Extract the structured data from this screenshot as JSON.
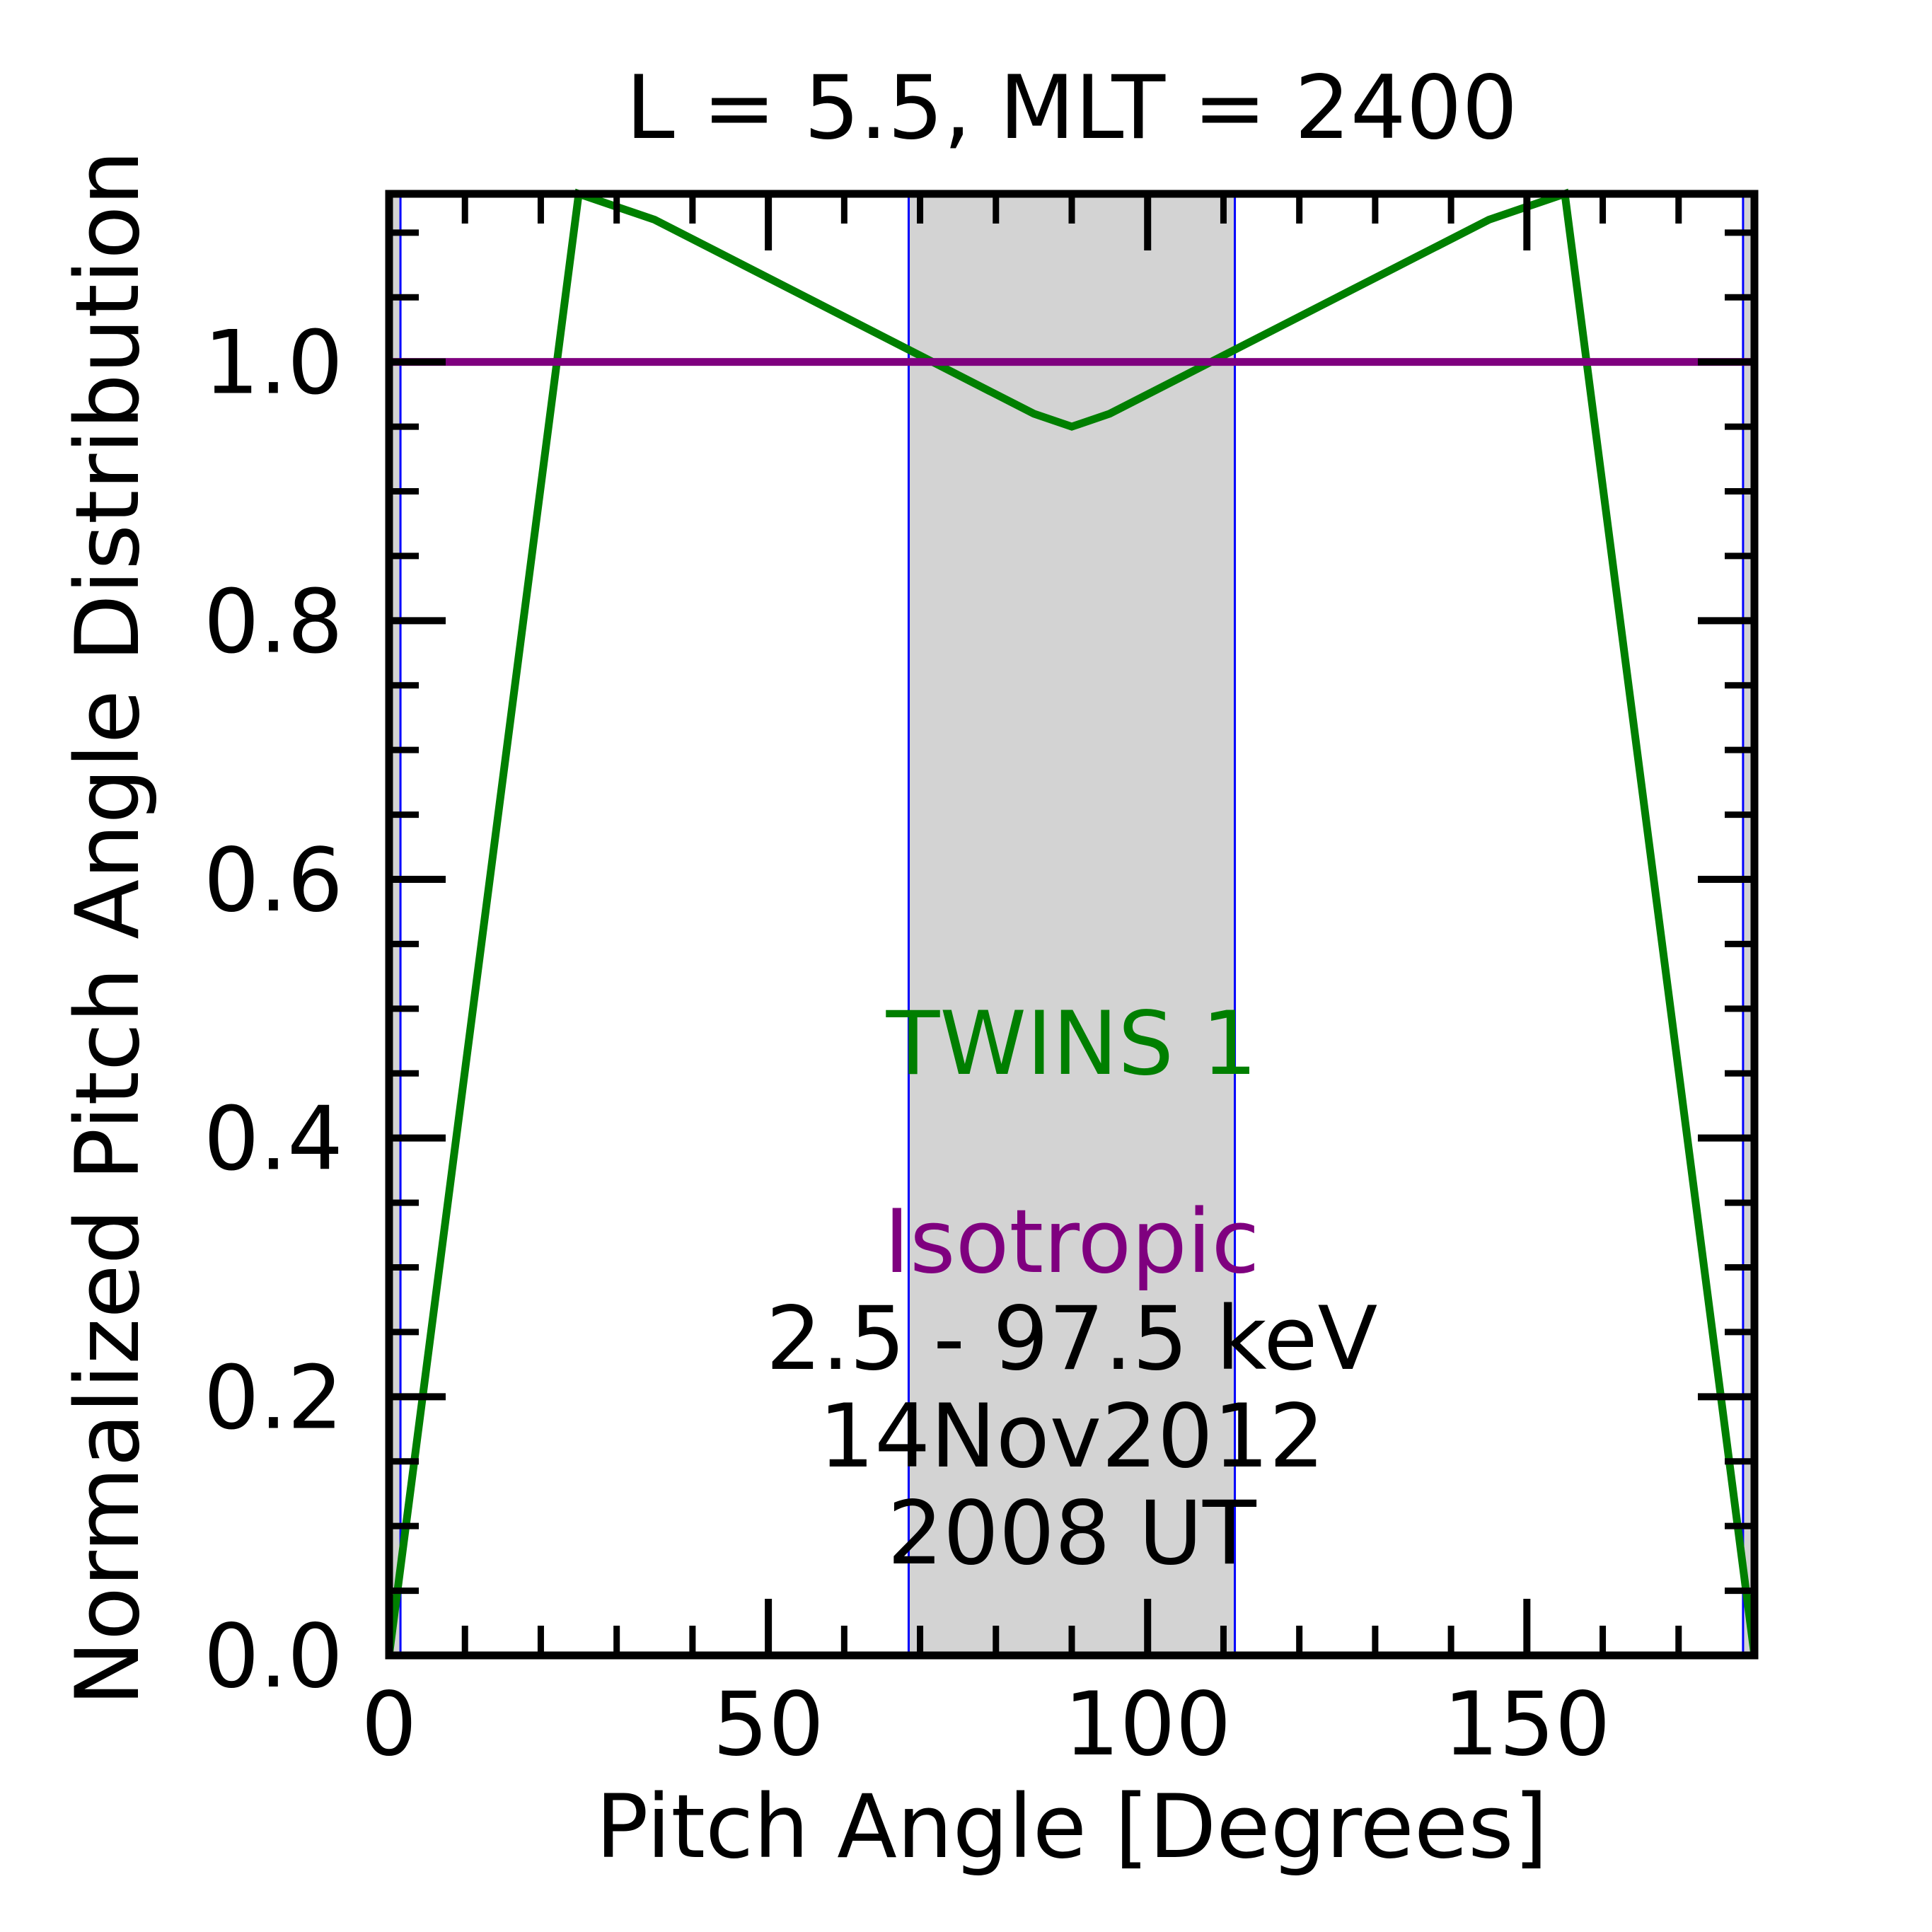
{
  "chart_data": {
    "type": "line",
    "title": "L =  5.5, MLT = 2400",
    "xlabel": "Pitch Angle [Degrees]",
    "ylabel": "Normalized Pitch Angle Distribution",
    "xlim": [
      0,
      180
    ],
    "ylim": [
      0,
      1.13
    ],
    "x_ticks": [
      0,
      50,
      100,
      150
    ],
    "x_tick_labels": [
      "0",
      "50",
      "100",
      "150"
    ],
    "y_ticks": [
      0.0,
      0.2,
      0.4,
      0.6,
      0.8,
      1.0
    ],
    "y_tick_labels": [
      "0.0",
      "0.2",
      "0.4",
      "0.6",
      "0.8",
      "1.0"
    ],
    "grid": false,
    "shaded_regions": [
      {
        "x": [
          0,
          1.5
        ],
        "color": "#d3d3d3"
      },
      {
        "x": [
          68.5,
          111.5
        ],
        "color": "#d3d3d3"
      },
      {
        "x": [
          178.5,
          180
        ],
        "color": "#d3d3d3"
      }
    ],
    "vertical_lines": [
      {
        "x": 1.5,
        "color": "#0000ff"
      },
      {
        "x": 68.5,
        "color": "#000000"
      },
      {
        "x": 68.5,
        "color": "#0000ff"
      },
      {
        "x": 111.5,
        "color": "#000000"
      },
      {
        "x": 111.5,
        "color": "#0000ff"
      },
      {
        "x": 178.5,
        "color": "#0000ff"
      }
    ],
    "series": [
      {
        "name": "TWINS 1",
        "color": "#007f00",
        "x": [
          0,
          25,
          35,
          45,
          55,
          65,
          75,
          85,
          90,
          95,
          105,
          115,
          125,
          135,
          145,
          155,
          180
        ],
        "y": [
          0.0,
          1.13,
          1.11,
          1.08,
          1.05,
          1.02,
          0.99,
          0.96,
          0.95,
          0.96,
          0.99,
          1.02,
          1.05,
          1.08,
          1.11,
          1.13,
          0.0
        ]
      },
      {
        "name": "Isotropic",
        "color": "#7f007f",
        "x": [
          0,
          180
        ],
        "y": [
          1.0,
          1.0
        ]
      }
    ],
    "annotations": [
      {
        "key": "twins",
        "text": "TWINS 1",
        "color": "#007f00"
      },
      {
        "key": "iso",
        "text": "Isotropic",
        "color": "#7f007f"
      },
      {
        "key": "energy",
        "text": "2.5 - 97.5 keV",
        "color": "#000000"
      },
      {
        "key": "date",
        "text": "14Nov2012",
        "color": "#000000"
      },
      {
        "key": "time",
        "text": "2008 UT",
        "color": "#000000"
      }
    ]
  }
}
